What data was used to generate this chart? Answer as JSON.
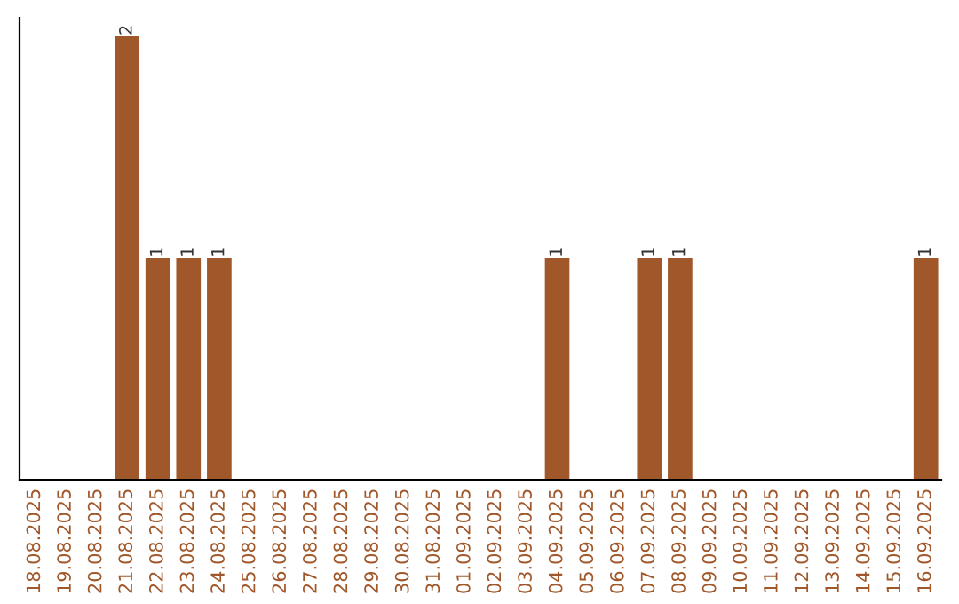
{
  "chart_data": {
    "type": "bar",
    "categories": [
      "18.08.2025",
      "19.08.2025",
      "20.08.2025",
      "21.08.2025",
      "22.08.2025",
      "23.08.2025",
      "24.08.2025",
      "25.08.2025",
      "26.08.2025",
      "27.08.2025",
      "28.08.2025",
      "29.08.2025",
      "30.08.2025",
      "31.08.2025",
      "01.09.2025",
      "02.09.2025",
      "03.09.2025",
      "04.09.2025",
      "05.09.2025",
      "06.09.2025",
      "07.09.2025",
      "08.09.2025",
      "09.09.2025",
      "10.09.2025",
      "11.09.2025",
      "12.09.2025",
      "13.09.2025",
      "14.09.2025",
      "15.09.2025",
      "16.09.2025"
    ],
    "values": [
      0,
      0,
      0,
      2,
      1,
      1,
      1,
      0,
      0,
      0,
      0,
      0,
      0,
      0,
      0,
      0,
      0,
      1,
      0,
      0,
      1,
      1,
      0,
      0,
      0,
      0,
      0,
      0,
      0,
      1
    ],
    "value_labels": [
      null,
      null,
      null,
      "2",
      "1",
      "1",
      "1",
      null,
      null,
      null,
      null,
      null,
      null,
      null,
      null,
      null,
      null,
      "1",
      null,
      null,
      "1",
      "1",
      null,
      null,
      null,
      null,
      null,
      null,
      null,
      "1"
    ],
    "color": "#a0572a",
    "tick_labels": "x"
  }
}
